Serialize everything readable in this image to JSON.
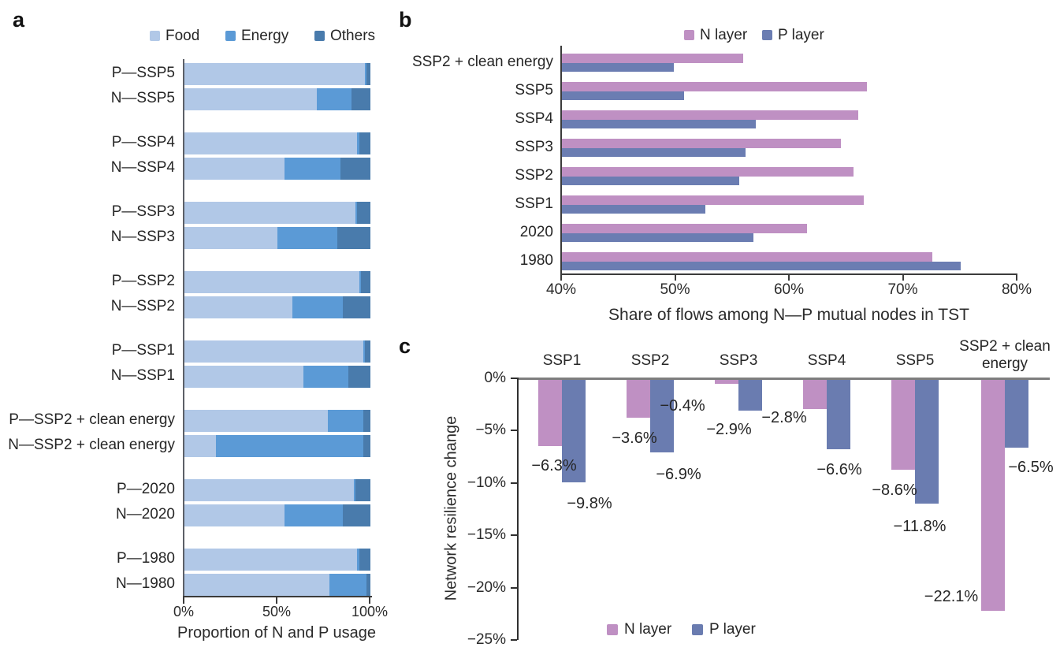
{
  "figure": {
    "panels": {
      "a": {
        "letter": "a"
      },
      "b": {
        "letter": "b"
      },
      "c": {
        "letter": "c"
      }
    }
  },
  "chart_data": [
    {
      "panel": "a",
      "type": "bar",
      "orientation": "horizontal",
      "stacked": true,
      "title": "",
      "xlabel": "Proportion of N and P usage",
      "ylabel": "",
      "xlim": [
        0,
        100
      ],
      "x_ticks": [
        {
          "label": "0%",
          "value": 0
        },
        {
          "label": "50%",
          "value": 50
        },
        {
          "label": "100%",
          "value": 100
        }
      ],
      "categories": [
        "P—SSP5",
        "N—SSP5",
        "P—SSP4",
        "N—SSP4",
        "P—SSP3",
        "N—SSP3",
        "P—SSP2",
        "N—SSP2",
        "P—SSP1",
        "N—SSP1",
        "P—SSP2 + clean energy",
        "N—SSP2 + clean energy",
        "P—2020",
        "N—2020",
        "P—1980",
        "N—1980"
      ],
      "series": [
        {
          "name": "Food",
          "color": "#b1c8e7",
          "values": [
            97,
            71,
            93,
            54,
            92,
            50,
            94,
            58,
            96,
            64,
            77,
            17,
            91,
            54,
            93,
            78
          ]
        },
        {
          "name": "Energy",
          "color": "#5b9ad6",
          "values": [
            1,
            19,
            1,
            30,
            1,
            32,
            1,
            27,
            1,
            24,
            19,
            79,
            1,
            31,
            1,
            20
          ]
        },
        {
          "name": "Others",
          "color": "#497bac",
          "values": [
            2,
            10,
            6,
            16,
            7,
            18,
            5,
            15,
            3,
            12,
            4,
            4,
            8,
            15,
            6,
            2
          ]
        }
      ],
      "legend_position": "top"
    },
    {
      "panel": "b",
      "type": "bar",
      "orientation": "horizontal",
      "grouped": true,
      "title": "",
      "xlabel": "Share of flows among N—P mutual nodes in TST",
      "ylabel": "",
      "xlim": [
        40,
        80
      ],
      "x_ticks": [
        {
          "label": "40%",
          "value": 40
        },
        {
          "label": "50%",
          "value": 50
        },
        {
          "label": "60%",
          "value": 60
        },
        {
          "label": "70%",
          "value": 70
        },
        {
          "label": "80%",
          "value": 80
        }
      ],
      "categories": [
        "SSP2 + clean energy",
        "SSP5",
        "SSP4",
        "SSP3",
        "SSP2",
        "SSP1",
        "2020",
        "1980"
      ],
      "series": [
        {
          "name": "N layer",
          "color": "#bf90c3",
          "values": [
            55.9,
            66.8,
            66.0,
            64.5,
            65.6,
            66.5,
            61.5,
            72.5
          ]
        },
        {
          "name": "P layer",
          "color": "#6b7db2",
          "values": [
            49.8,
            50.7,
            57.0,
            56.1,
            55.6,
            52.6,
            56.8,
            75.0
          ]
        }
      ],
      "legend_position": "top"
    },
    {
      "panel": "c",
      "type": "bar",
      "orientation": "vertical",
      "grouped": true,
      "title": "",
      "xlabel": "",
      "ylabel": "Network resilience change",
      "ylim": [
        -25,
        0
      ],
      "y_ticks": [
        {
          "label": "0%",
          "value": 0
        },
        {
          "label": "−5%",
          "value": -5
        },
        {
          "label": "−10%",
          "value": -10
        },
        {
          "label": "−15%",
          "value": -15
        },
        {
          "label": "−20%",
          "value": -20
        },
        {
          "label": "−25%",
          "value": -25
        }
      ],
      "categories": [
        "SSP1",
        "SSP2",
        "SSP3",
        "SSP4",
        "SSP5",
        "SSP2 + clean energy"
      ],
      "series": [
        {
          "name": "N layer",
          "color": "#bf90c3",
          "values": [
            -6.3,
            -3.6,
            -0.4,
            -2.8,
            -8.6,
            -22.1
          ],
          "labels": [
            "−6.3%",
            "−3.6%",
            "−0.4%",
            "−2.8%",
            "−8.6%",
            "−22.1%"
          ]
        },
        {
          "name": "P layer",
          "color": "#6a7cb0",
          "values": [
            -9.8,
            -6.9,
            -2.9,
            -6.6,
            -11.8,
            -6.5
          ],
          "labels": [
            "−9.8%",
            "−6.9%",
            "−2.9%",
            "−6.6%",
            "−11.8%",
            "−6.5%"
          ]
        }
      ],
      "legend_position": "bottom"
    }
  ]
}
